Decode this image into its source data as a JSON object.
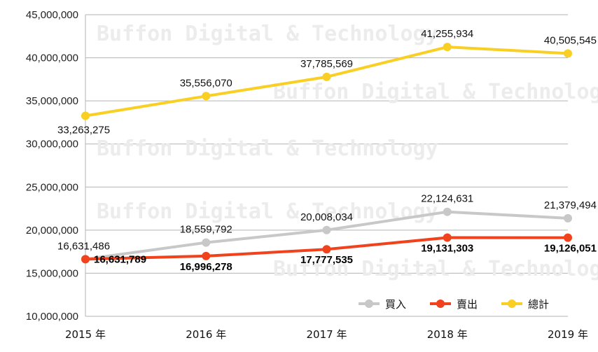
{
  "chart_data": {
    "type": "line",
    "title": "",
    "xlabel": "",
    "ylabel": "",
    "categories": [
      "2015 年",
      "2016 年",
      "2017 年",
      "2018 年",
      "2019 年"
    ],
    "ylim": [
      10000000,
      45000000
    ],
    "yticks": [
      10000000,
      15000000,
      20000000,
      25000000,
      30000000,
      35000000,
      40000000,
      45000000
    ],
    "ytick_labels": [
      "10,000,000",
      "15,000,000",
      "20,000,000",
      "25,000,000",
      "30,000,000",
      "35,000,000",
      "40,000,000",
      "45,000,000"
    ],
    "grid": true,
    "legend_position": "bottom-right",
    "series": [
      {
        "name": "買入",
        "color": "#c8c8c8",
        "values": [
          16631486,
          18559792,
          20008034,
          22124631,
          21379494
        ],
        "labels": [
          "16,631,486",
          "18,559,792",
          "20,008,034",
          "22,124,631",
          "21,379,494"
        ]
      },
      {
        "name": "賣出",
        "color": "#f0421c",
        "values": [
          16631789,
          16996278,
          17777535,
          19131303,
          19126051
        ],
        "labels": [
          "16,631,789",
          "16,996,278",
          "17,777,535",
          "19,131,303",
          "19,126,051"
        ]
      },
      {
        "name": "總計",
        "color": "#f9cf23",
        "values": [
          33263275,
          35556070,
          37785569,
          41255934,
          40505545
        ],
        "labels": [
          "33,263,275",
          "35,556,070",
          "37,785,569",
          "41,255,934",
          "40,505,545"
        ]
      }
    ],
    "watermark": "Buffon Digital & Technology"
  }
}
